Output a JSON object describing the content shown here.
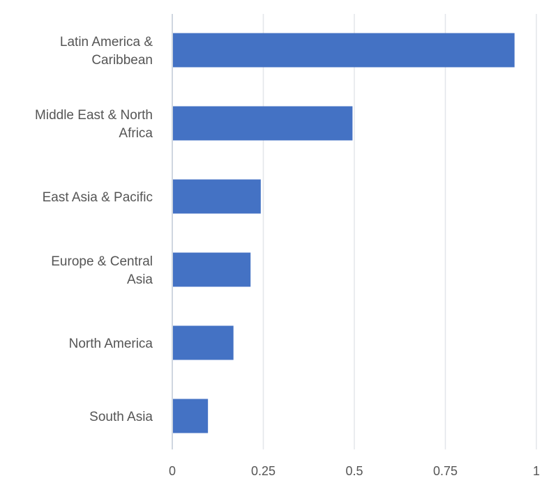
{
  "chart_data": {
    "type": "bar",
    "orientation": "horizontal",
    "categories": [
      "Latin America & Caribbean",
      "Middle East & North Africa",
      "East Asia & Pacific",
      "Europe & Central Asia",
      "North America",
      "South Asia"
    ],
    "values": [
      0.94,
      0.495,
      0.243,
      0.215,
      0.168,
      0.098
    ],
    "xlim": [
      0,
      1
    ],
    "ticks": [
      0,
      0.25,
      0.5,
      0.75,
      1
    ],
    "tick_labels": [
      "0",
      "0.25",
      "0.5",
      "0.75",
      "1"
    ],
    "grid": true,
    "legend": "none",
    "bar_color": "#4472c4"
  }
}
